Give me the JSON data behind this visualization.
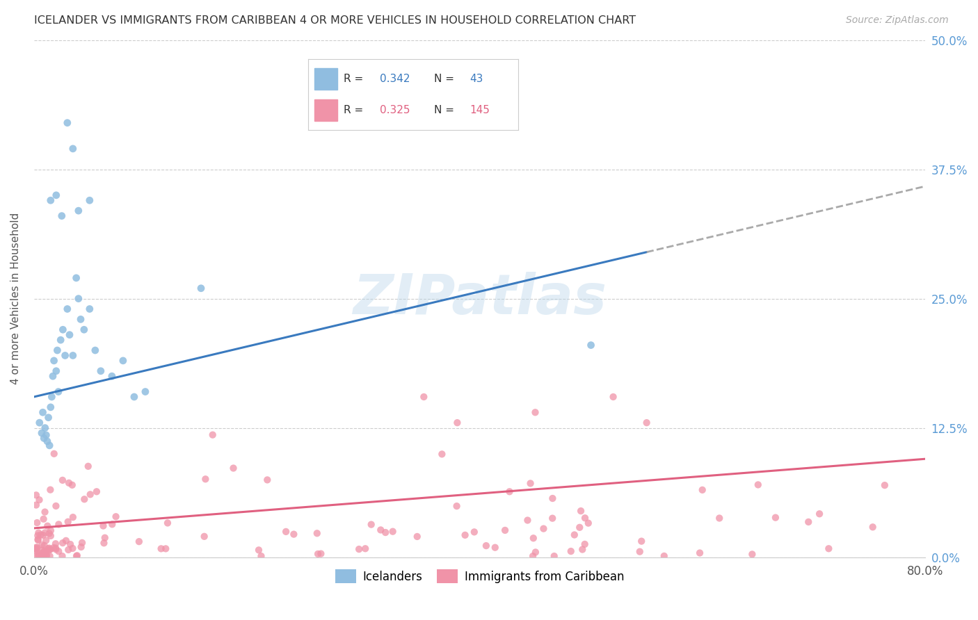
{
  "title": "ICELANDER VS IMMIGRANTS FROM CARIBBEAN 4 OR MORE VEHICLES IN HOUSEHOLD CORRELATION CHART",
  "source": "Source: ZipAtlas.com",
  "ylabel_label": "4 or more Vehicles in Household",
  "ylim": [
    0.0,
    0.5
  ],
  "xlim": [
    0.0,
    0.8
  ],
  "blue_R": 0.342,
  "blue_N": 43,
  "pink_R": 0.325,
  "pink_N": 145,
  "blue_line_color": "#3a7abf",
  "pink_line_color": "#e06080",
  "blue_dot_color": "#90bde0",
  "pink_dot_color": "#f093a8",
  "watermark": "ZIPatlas",
  "legend_blue_label": "Icelanders",
  "legend_pink_label": "Immigrants from Caribbean",
  "background_color": "#ffffff",
  "grid_color": "#cccccc",
  "title_color": "#333333",
  "right_tick_color": "#5b9bd5",
  "blue_line_y0": 0.155,
  "blue_line_y1": 0.295,
  "blue_line_x0": 0.0,
  "blue_line_x1": 0.55,
  "pink_line_y0": 0.028,
  "pink_line_y1": 0.095,
  "pink_line_x0": 0.0,
  "pink_line_x1": 0.8
}
